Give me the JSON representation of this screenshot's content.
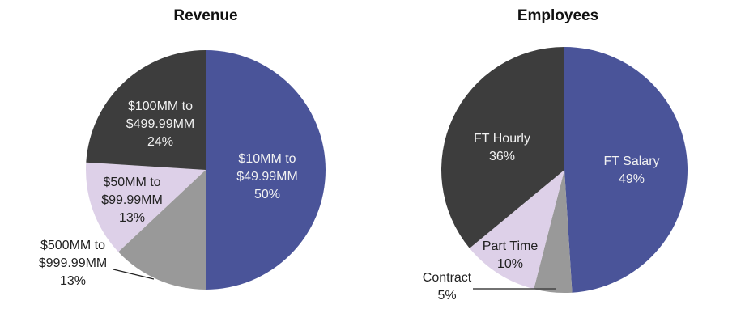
{
  "chart_data": [
    {
      "type": "pie",
      "title": "Revenue",
      "start_angle": "12 o'clock",
      "direction": "clockwise",
      "categories": [
        "$10MM to $49.99MM",
        "$500MM to $999.99MM",
        "$50MM to $99.99MM",
        "$100MM to $499.99MM"
      ],
      "values": [
        50,
        13,
        13,
        24
      ],
      "colors": [
        "#4a5499",
        "#999999",
        "#ddd0e8",
        "#3d3d3d"
      ],
      "labels": [
        {
          "line1": "$10MM to",
          "line2": "$49.99MM",
          "pct": "50%"
        },
        {
          "line1": "$500MM to",
          "line2": "$999.99MM",
          "pct": "13%"
        },
        {
          "line1": "$50MM to",
          "line2": "$99.99MM",
          "pct": "13%"
        },
        {
          "line1": "$100MM to",
          "line2": "$499.99MM",
          "pct": "24%"
        }
      ],
      "legend": "none (data labels on slices)"
    },
    {
      "type": "pie",
      "title": "Employees",
      "start_angle": "12 o'clock",
      "direction": "clockwise",
      "categories": [
        "FT Salary",
        "Contract",
        "Part Time",
        "FT Hourly"
      ],
      "values": [
        49,
        5,
        10,
        36
      ],
      "colors": [
        "#4a5499",
        "#999999",
        "#ddd0e8",
        "#3d3d3d"
      ],
      "labels": [
        {
          "line1": "FT Salary",
          "pct": "49%"
        },
        {
          "line1": "Contract",
          "pct": "5%"
        },
        {
          "line1": "Part Time",
          "pct": "10%"
        },
        {
          "line1": "FT Hourly",
          "pct": "36%"
        }
      ],
      "legend": "none (data labels on slices)"
    }
  ]
}
